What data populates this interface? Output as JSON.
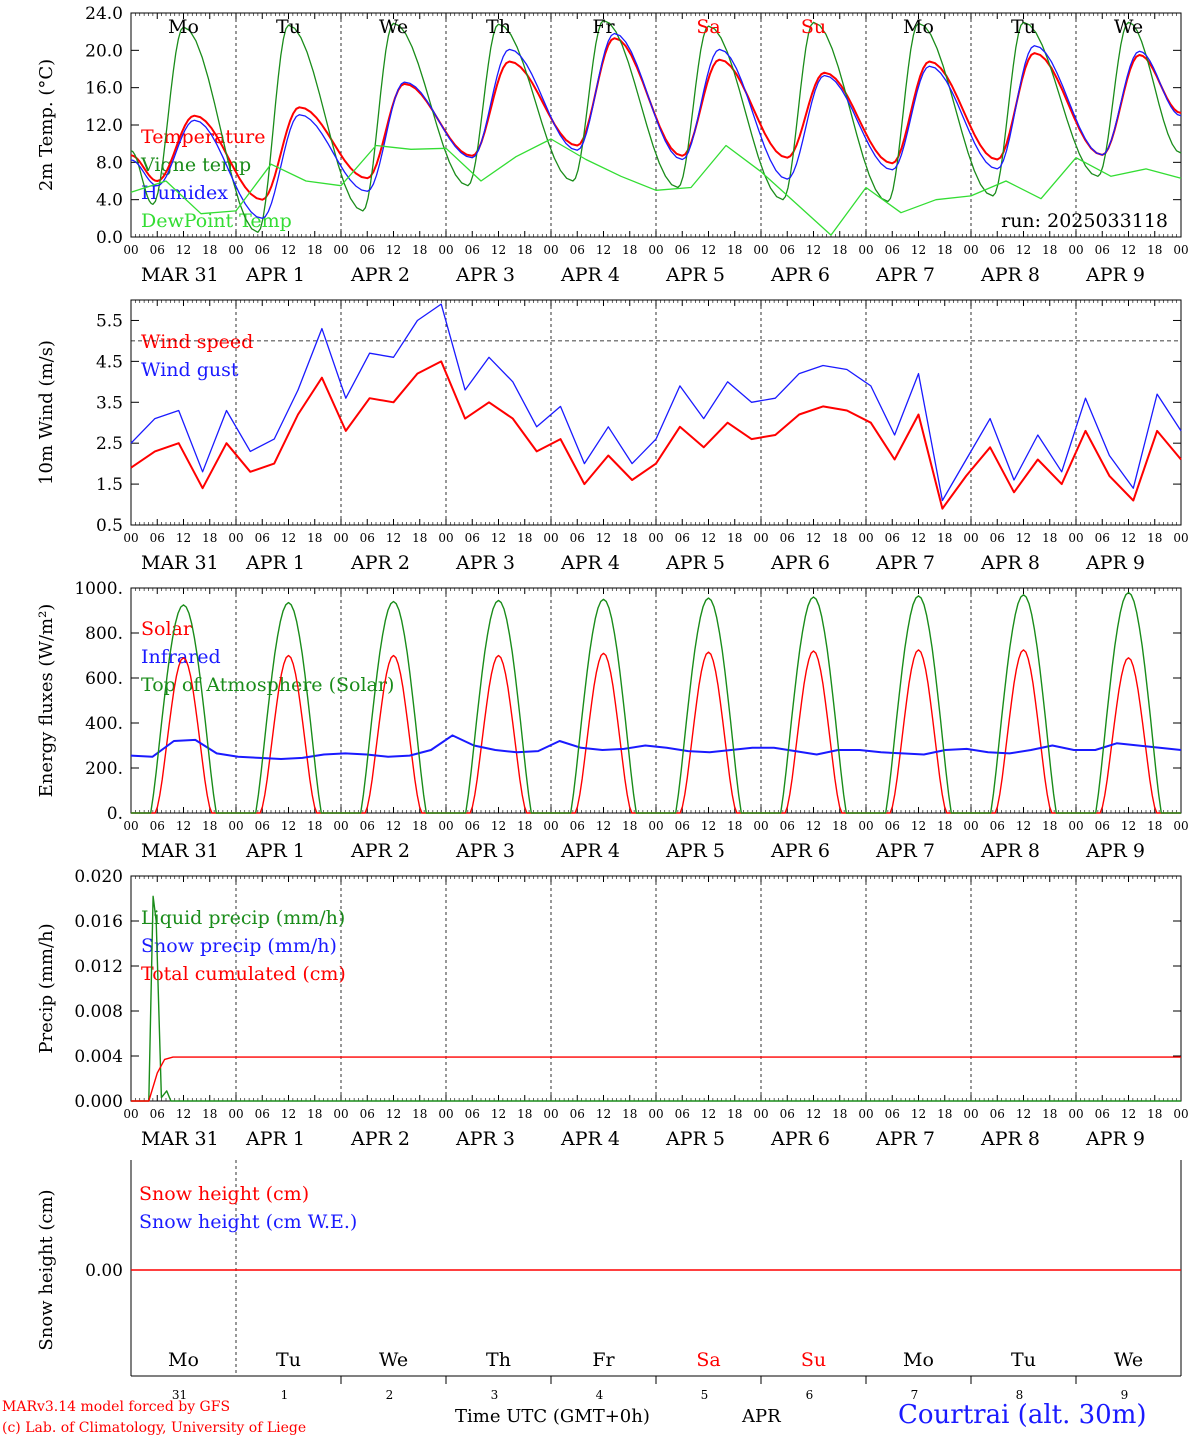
{
  "run_label": "run: 2025033118",
  "footer": {
    "credit_line1": "MARv3.14 model forced by GFS",
    "credit_line2": "(c) Lab. of Climatology, University of Liege",
    "xaxis_label": "Time UTC (GMT+0h)",
    "month_label": "APR",
    "station": "Courtrai (alt. 30m)"
  },
  "weekdays": [
    "Mo",
    "Tu",
    "We",
    "Th",
    "Fr",
    "Sa",
    "Su",
    "Mo",
    "Tu",
    "We"
  ],
  "weekend_color": "#ff0000",
  "hour_ticks": [
    "00",
    "06",
    "12",
    "18"
  ],
  "day_labels": [
    "MAR 31",
    "APR  1",
    "APR  2",
    "APR  3",
    "APR  4",
    "APR  5",
    "APR  6",
    "APR  7",
    "APR  8",
    "APR  9"
  ],
  "bottom_day_numbers": [
    "31",
    "1",
    "2",
    "3",
    "4",
    "5",
    "6",
    "7",
    "8",
    "9"
  ],
  "colors": {
    "red": "#ff0000",
    "green": "#1a8c1a",
    "blue": "#1a1aff",
    "light_green": "#33dd33"
  },
  "chart_data": [
    {
      "id": "temp",
      "type": "line",
      "ylabel": "2m Temp. (°C)",
      "ylim": [
        0,
        24
      ],
      "yticks": [
        "0.0",
        "4.0",
        "8.0",
        "12.0",
        "16.0",
        "20.0",
        "24.0"
      ],
      "series": [
        {
          "name": "Temperature",
          "color": "#ff0000",
          "min": [
            6,
            4,
            6.3,
            8.7,
            9.8,
            8.7,
            8.5,
            7.9,
            8.3,
            8.8
          ],
          "max": [
            13,
            13.9,
            16.4,
            18.8,
            21.3,
            19,
            17.6,
            18.8,
            19.7,
            19.5
          ],
          "end": 13.3
        },
        {
          "name": "Vigne temp",
          "color": "#1a8c1a",
          "min": [
            3.5,
            0.5,
            2.8,
            5.5,
            6,
            5.3,
            4,
            3.8,
            4.4,
            6.5
          ],
          "max": [
            22.5,
            22.7,
            22.9,
            22.8,
            23.2,
            22.6,
            23,
            22.9,
            23,
            23
          ],
          "end": 9
        },
        {
          "name": "Humidex",
          "color": "#1a1aff",
          "min": [
            5.5,
            2,
            4.9,
            8.5,
            9.3,
            8.3,
            6.2,
            7.2,
            7.3,
            8.8
          ],
          "max": [
            12.5,
            13.1,
            16.6,
            20.1,
            21.8,
            20.1,
            17.3,
            18.3,
            20.5,
            19.9
          ],
          "end": 13
        },
        {
          "name": "DewPoint Temp",
          "color": "#33dd33",
          "values": [
            4.8,
            6,
            2.5,
            2.8,
            7.8,
            6,
            5.5,
            9.8,
            9.4,
            9.5,
            6,
            8.6,
            10.5,
            8.3,
            6.5,
            5,
            5.3,
            9.8,
            7,
            3.6,
            0.2,
            5.3,
            2.6,
            4,
            4.4,
            6,
            4.1,
            8.5,
            6.5,
            7.3,
            6.3
          ]
        }
      ],
      "legend": [
        "Temperature",
        "Vigne temp",
        "Humidex",
        "DewPoint Temp"
      ]
    },
    {
      "id": "wind",
      "type": "line",
      "ylabel": "10m Wind (m/s)",
      "ylim": [
        0.5,
        6
      ],
      "yticks": [
        "0.5",
        "1.5",
        "2.5",
        "3.5",
        "4.5",
        "5.5"
      ],
      "reference_line": 5,
      "series": [
        {
          "name": "Wind speed",
          "color": "#ff0000",
          "values": [
            1.9,
            2.3,
            2.5,
            1.4,
            2.5,
            1.8,
            2,
            3.2,
            4.1,
            2.8,
            3.6,
            3.5,
            4.2,
            4.5,
            3.1,
            3.5,
            3.1,
            2.3,
            2.6,
            1.5,
            2.2,
            1.6,
            2,
            2.9,
            2.4,
            3,
            2.6,
            2.7,
            3.2,
            3.4,
            3.3,
            3,
            2.1,
            3.2,
            0.9,
            1.7,
            2.4,
            1.3,
            2.1,
            1.5,
            2.8,
            1.7,
            1.1,
            2.8,
            2.1
          ]
        },
        {
          "name": "Wind gust",
          "color": "#1a1aff",
          "values": [
            2.5,
            3.1,
            3.3,
            1.8,
            3.3,
            2.3,
            2.6,
            3.8,
            5.3,
            3.6,
            4.7,
            4.6,
            5.5,
            5.9,
            3.8,
            4.6,
            4,
            2.9,
            3.4,
            2,
            2.9,
            2,
            2.6,
            3.9,
            3.1,
            4,
            3.5,
            3.6,
            4.2,
            4.4,
            4.3,
            3.9,
            2.7,
            4.2,
            1.1,
            2.1,
            3.1,
            1.6,
            2.7,
            1.8,
            3.6,
            2.2,
            1.4,
            3.7,
            2.8
          ]
        }
      ],
      "legend": [
        "Wind speed",
        "Wind gust"
      ]
    },
    {
      "id": "energy",
      "type": "line",
      "ylabel": "Energy fluxes (W/m²)",
      "ylim": [
        0,
        1000
      ],
      "yticks": [
        "0.",
        "200.",
        "400.",
        "600.",
        "800.",
        "1000."
      ],
      "series": [
        {
          "name": "Solar",
          "color": "#ff0000",
          "peaks": [
            690,
            700,
            700,
            700,
            710,
            715,
            720,
            725,
            725,
            690
          ]
        },
        {
          "name": "Infrared",
          "color": "#1a1aff",
          "values": [
            255,
            250,
            320,
            325,
            265,
            250,
            245,
            240,
            245,
            260,
            265,
            260,
            250,
            255,
            280,
            345,
            300,
            280,
            270,
            275,
            320,
            290,
            280,
            285,
            300,
            290,
            275,
            270,
            280,
            290,
            290,
            275,
            260,
            280,
            280,
            270,
            265,
            260,
            280,
            285,
            270,
            265,
            280,
            300,
            280,
            280,
            310,
            300,
            290,
            280
          ]
        },
        {
          "name": "Top of Atmosphere (Solar)",
          "color": "#1a8c1a",
          "peaks": [
            925,
            935,
            940,
            945,
            950,
            955,
            960,
            965,
            970,
            980
          ]
        }
      ],
      "legend": [
        "Solar",
        "Infrared",
        "Top of Atmosphere (Solar)"
      ]
    },
    {
      "id": "precip",
      "type": "line",
      "ylabel": "Precip (mm/h)",
      "ylim": [
        0,
        0.02
      ],
      "yticks": [
        "0.000",
        "0.004",
        "0.008",
        "0.012",
        "0.016",
        "0.020"
      ],
      "series": [
        {
          "name": "Liquid precip (mm/h)",
          "color": "#1a8c1a",
          "x": [
            0,
            0.17,
            0.21,
            0.24,
            0.29,
            0.34,
            0.38,
            0.45,
            10
          ],
          "values": [
            0,
            0,
            0.0182,
            0.016,
            0.0003,
            0.0009,
            0,
            0,
            0
          ]
        },
        {
          "name": "Snow precip (mm/h)",
          "color": "#1a1aff",
          "values": []
        },
        {
          "name": "Total cumulated (cm)",
          "color": "#ff0000",
          "x": [
            0,
            0.17,
            0.25,
            0.32,
            0.4,
            10
          ],
          "values": [
            0,
            0,
            0.0025,
            0.0037,
            0.0039,
            0.0039
          ]
        }
      ],
      "legend": [
        "Liquid precip (mm/h)",
        "Snow precip (mm/h)",
        "Total cumulated (cm)"
      ]
    },
    {
      "id": "snow",
      "type": "line",
      "ylabel": "Snow height (cm)",
      "ylim": [
        -1,
        1
      ],
      "yticks": [
        "0.00"
      ],
      "series": [
        {
          "name": "Snow height (cm)",
          "color": "#ff0000",
          "values": [
            0,
            0
          ]
        },
        {
          "name": "Snow height (cm W.E.)",
          "color": "#1a1aff",
          "values": []
        }
      ],
      "legend": [
        "Snow height (cm)",
        "Snow height (cm W.E.)"
      ]
    }
  ]
}
